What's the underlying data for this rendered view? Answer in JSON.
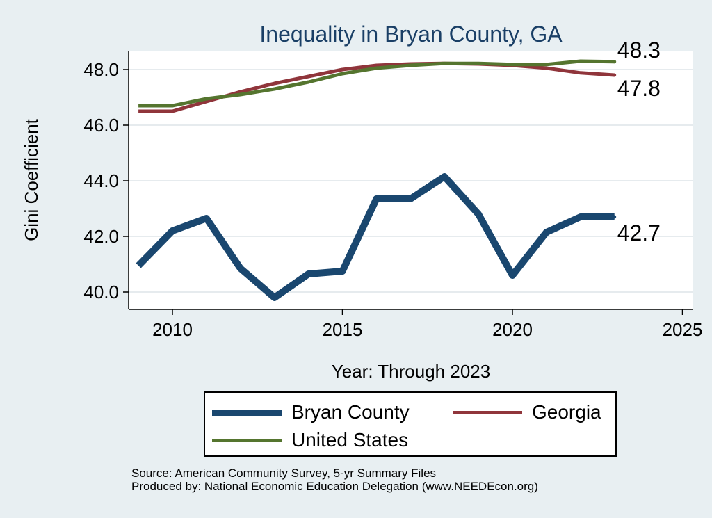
{
  "chart_data": {
    "type": "line",
    "title": "Inequality in Bryan County, GA",
    "xlabel": "Year: Through 2023",
    "ylabel": "Gini Coefficient",
    "xlim": [
      2009,
      2025
    ],
    "ylim": [
      39.5,
      48.7
    ],
    "xticks": [
      2010,
      2015,
      2020,
      2025
    ],
    "yticks": [
      40.0,
      42.0,
      44.0,
      46.0,
      48.0
    ],
    "x": [
      2009,
      2010,
      2011,
      2012,
      2013,
      2014,
      2015,
      2016,
      2017,
      2018,
      2019,
      2020,
      2021,
      2022,
      2023
    ],
    "series": [
      {
        "name": "Bryan County",
        "color": "#1a476f",
        "values": [
          40.95,
          42.2,
          42.65,
          40.85,
          39.8,
          40.65,
          40.75,
          43.35,
          43.35,
          44.15,
          42.8,
          40.6,
          42.15,
          42.7,
          42.7
        ],
        "end_label": "42.7"
      },
      {
        "name": "Georgia",
        "color": "#90353b",
        "values": [
          46.5,
          46.5,
          46.85,
          47.2,
          47.5,
          47.75,
          48.0,
          48.15,
          48.2,
          48.22,
          48.2,
          48.15,
          48.05,
          47.88,
          47.8
        ],
        "end_label": "47.8"
      },
      {
        "name": "United States",
        "color": "#55752f",
        "values": [
          46.7,
          46.7,
          46.95,
          47.1,
          47.3,
          47.55,
          47.85,
          48.05,
          48.15,
          48.22,
          48.22,
          48.18,
          48.18,
          48.3,
          48.28
        ],
        "end_label": "48.3"
      }
    ],
    "legend": [
      "Bryan County",
      "Georgia",
      "United States"
    ],
    "legend_position": "bottom",
    "grid": true
  },
  "footer": {
    "source": "Source: American Community Survey, 5-yr Summary Files",
    "produced_by": "Produced by: National Economic Education Delegation (www.NEEDEcon.org)"
  }
}
